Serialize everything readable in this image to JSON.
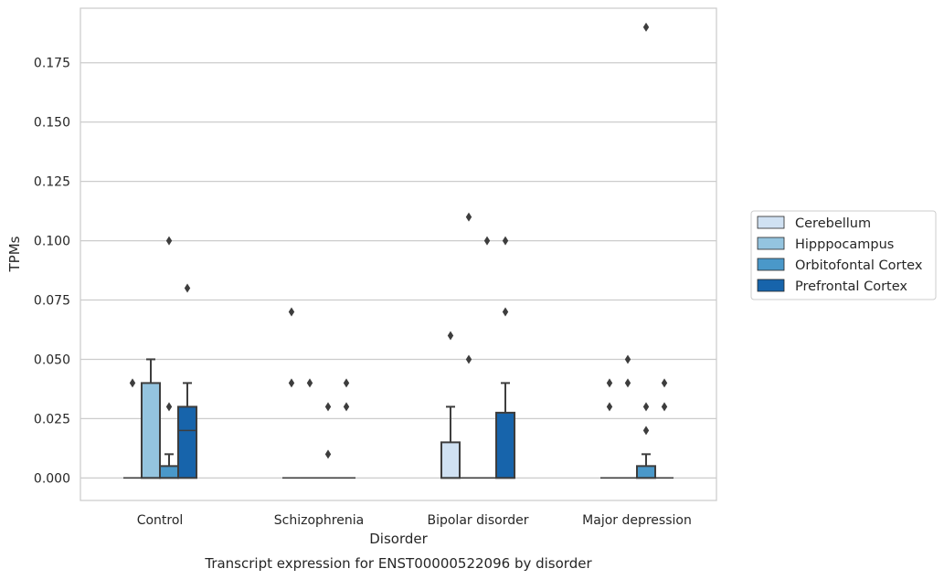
{
  "chart_data": {
    "type": "box",
    "title": "",
    "caption": "Transcript expression for ENST00000522096 by disorder",
    "xlabel": "Disorder",
    "ylabel": "TPMs",
    "ylim": [
      -0.0095,
      0.198
    ],
    "yticks": [
      0.0,
      0.025,
      0.05,
      0.075,
      0.1,
      0.125,
      0.15,
      0.175
    ],
    "ytick_labels": [
      "0.000",
      "0.025",
      "0.050",
      "0.075",
      "0.100",
      "0.125",
      "0.150",
      "0.175"
    ],
    "grid": "horizontal",
    "legend_position": "right",
    "categories": [
      "Control",
      "Schizophrenia",
      "Bipolar disorder",
      "Major depression"
    ],
    "series": [
      {
        "name": "Cerebellum",
        "color": "#d0e1f2",
        "boxes": [
          {
            "whislo": 0,
            "q1": 0,
            "med": 0,
            "q3": 0,
            "whishi": 0,
            "fliers": [
              0.04
            ]
          },
          {
            "whislo": 0,
            "q1": 0,
            "med": 0,
            "q3": 0,
            "whishi": 0,
            "fliers": [
              0.07,
              0.04
            ]
          },
          {
            "whislo": 0,
            "q1": 0,
            "med": 0,
            "q3": 0.015,
            "whishi": 0.03,
            "fliers": [
              0.06
            ]
          },
          {
            "whislo": 0,
            "q1": 0,
            "med": 0,
            "q3": 0,
            "whishi": 0,
            "fliers": [
              0.04,
              0.03
            ]
          }
        ]
      },
      {
        "name": "Hipppocampus",
        "color": "#94c4df",
        "boxes": [
          {
            "whislo": 0,
            "q1": 0,
            "med": 0,
            "q3": 0.04,
            "whishi": 0.05,
            "fliers": []
          },
          {
            "whislo": 0,
            "q1": 0,
            "med": 0,
            "q3": 0,
            "whishi": 0,
            "fliers": [
              0.04
            ]
          },
          {
            "whislo": 0,
            "q1": 0,
            "med": 0,
            "q3": 0,
            "whishi": 0,
            "fliers": [
              0.11,
              0.05
            ]
          },
          {
            "whislo": 0,
            "q1": 0,
            "med": 0,
            "q3": 0,
            "whishi": 0,
            "fliers": [
              0.05,
              0.04
            ]
          }
        ]
      },
      {
        "name": "Orbitofontal Cortex",
        "color": "#4a98c9",
        "boxes": [
          {
            "whislo": 0,
            "q1": 0,
            "med": 0,
            "q3": 0.005,
            "whishi": 0.01,
            "fliers": [
              0.1,
              0.03
            ]
          },
          {
            "whislo": 0,
            "q1": 0,
            "med": 0,
            "q3": 0,
            "whishi": 0,
            "fliers": [
              0.03,
              0.01
            ]
          },
          {
            "whislo": 0,
            "q1": 0,
            "med": 0,
            "q3": 0,
            "whishi": 0,
            "fliers": [
              0.1
            ]
          },
          {
            "whislo": 0,
            "q1": 0,
            "med": 0,
            "q3": 0.005,
            "whishi": 0.01,
            "fliers": [
              0.19,
              0.03,
              0.02
            ]
          }
        ]
      },
      {
        "name": "Prefrontal Cortex",
        "color": "#1764ab",
        "boxes": [
          {
            "whislo": 0,
            "q1": 0,
            "med": 0.02,
            "q3": 0.03,
            "whishi": 0.04,
            "fliers": [
              0.08
            ]
          },
          {
            "whislo": 0,
            "q1": 0,
            "med": 0,
            "q3": 0,
            "whishi": 0,
            "fliers": [
              0.04,
              0.03
            ]
          },
          {
            "whislo": 0,
            "q1": 0,
            "med": 0,
            "q3": 0.0275,
            "whishi": 0.04,
            "fliers": [
              0.1,
              0.07
            ]
          },
          {
            "whislo": 0,
            "q1": 0,
            "med": 0,
            "q3": 0,
            "whishi": 0,
            "fliers": [
              0.04,
              0.03
            ]
          }
        ]
      }
    ]
  }
}
